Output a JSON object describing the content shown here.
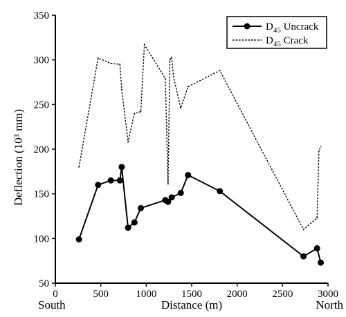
{
  "chart_data": {
    "type": "line",
    "xlabel": "Distance (m)",
    "ylabel": "Deflection (10³ mm)",
    "xlim": [
      0,
      3000
    ],
    "ylim": [
      50,
      350
    ],
    "x_ticks": [
      "0",
      "500",
      "1000",
      "1500",
      "2000",
      "2500",
      "3000"
    ],
    "y_ticks": [
      "50",
      "100",
      "150",
      "200",
      "250",
      "300",
      "350"
    ],
    "axis_end_labels": {
      "left": "South",
      "right": "North"
    },
    "grid": false,
    "legend_position": "top-right",
    "series": [
      {
        "name": "D45 Uncrack",
        "legend_main": "D",
        "legend_sub": "45",
        "legend_suffix": " Uncrack",
        "style": "solid-markers",
        "color": "#000000",
        "x": [
          260,
          470,
          610,
          710,
          730,
          800,
          870,
          940,
          1210,
          1240,
          1280,
          1380,
          1460,
          1810,
          2730,
          2880,
          2920
        ],
        "y": [
          99,
          160,
          165,
          165,
          180,
          112,
          118,
          134,
          143,
          141,
          146,
          151,
          171,
          153,
          80,
          89,
          73
        ]
      },
      {
        "name": "D45 Crack",
        "legend_main": "D",
        "legend_sub": "45",
        "legend_suffix": " Crack",
        "style": "dotted",
        "color": "#000000",
        "x": [
          260,
          470,
          610,
          710,
          730,
          800,
          870,
          940,
          980,
          1210,
          1240,
          1260,
          1280,
          1300,
          1380,
          1460,
          1810,
          2730,
          2880,
          2900,
          2920
        ],
        "y": [
          180,
          302,
          296,
          295,
          267,
          208,
          240,
          242,
          317,
          279,
          161,
          300,
          303,
          281,
          246,
          270,
          288,
          110,
          123,
          198,
          203
        ]
      }
    ]
  }
}
